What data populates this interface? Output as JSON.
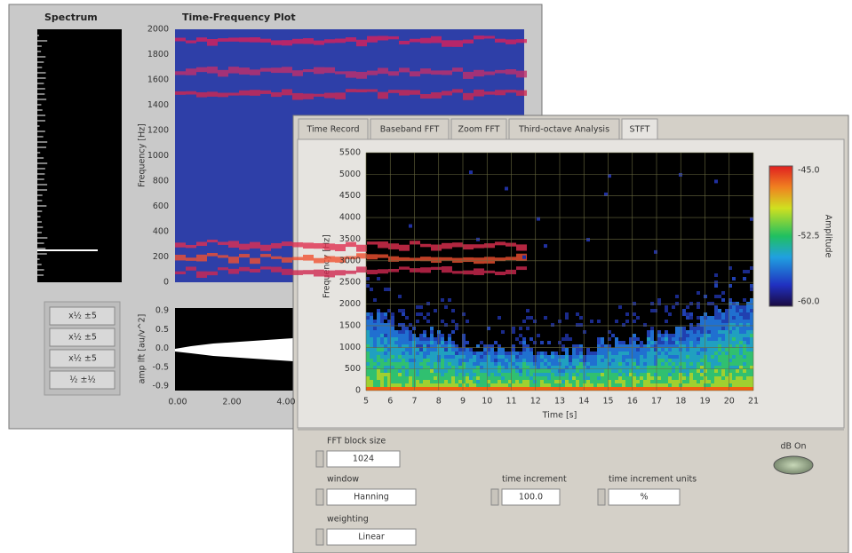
{
  "back_window": {
    "spectrum_title": "Spectrum",
    "tf_title": "Time-Frequency Plot",
    "tf_y_label": "Frequency [Hz]",
    "tf_y_ticks": [
      "0",
      "200",
      "400",
      "600",
      "800",
      "1000",
      "1200",
      "1400",
      "1600",
      "1800",
      "2000"
    ],
    "wave_y_label": "amp lft [au/v^2]",
    "wave_y_ticks": [
      "-0.9",
      "-0.5",
      "0.0",
      "0.5",
      "0.9"
    ],
    "wave_x_ticks": [
      "0.00",
      "2.00",
      "4.00"
    ],
    "buttons": [
      "x½ ±5",
      "x½ ±5",
      "x½ ±5",
      "½ ±½"
    ]
  },
  "front_window": {
    "tabs": [
      "Time Record",
      "Baseband FFT",
      "Zoom FFT",
      "Third-octave Analysis",
      "STFT"
    ],
    "plot": {
      "y_label": "Frequency [Hz]",
      "y_ticks": [
        "0",
        "500",
        "1000",
        "1500",
        "2000",
        "2500",
        "3000",
        "3500",
        "4000",
        "4500",
        "5000",
        "5500"
      ],
      "x_label": "Time [s]",
      "x_ticks": [
        "5",
        "6",
        "7",
        "8",
        "9",
        "10",
        "11",
        "12",
        "13",
        "14",
        "15",
        "16",
        "17",
        "18",
        "19",
        "20",
        "21"
      ],
      "colorbar_label": "Amplitude",
      "colorbar_ticks": [
        "-45.0",
        "-52.5",
        "-60.0"
      ]
    },
    "controls": {
      "fft_block_size": {
        "label": "FFT block size",
        "value": "1024"
      },
      "window": {
        "label": "window",
        "value": "Hanning"
      },
      "weighting": {
        "label": "weighting",
        "value": "Linear"
      },
      "time_increment": {
        "label": "time increment",
        "value": "100.0"
      },
      "time_increment_units": {
        "label": "time increment units",
        "value": "%"
      },
      "db_on": {
        "label": "dB On"
      }
    }
  }
}
